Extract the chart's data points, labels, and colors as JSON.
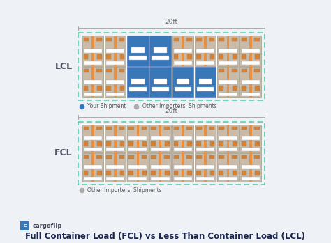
{
  "title": "Full Container Load (FCL) vs Less Than Container Load (LCL)",
  "background_color": "#eef2f7",
  "dashed_border_color": "#4ec9a8",
  "tan": "#c9bba8",
  "blue": "#3878b8",
  "orange": "#d98030",
  "orange_stripe": "#e89040",
  "white": "#ffffff",
  "gray_dot": "#aaaaaa",
  "ruler_color": "#aaaaaa",
  "label_lcl": "LCL",
  "label_fcl": "FCL",
  "label_20ft": "20ft",
  "legend_your": "Your Shipment",
  "legend_other": "Other Importers' Shipments",
  "cargoflip_text": "cargoflip",
  "title_color": "#1a2550",
  "label_color": "#555566"
}
